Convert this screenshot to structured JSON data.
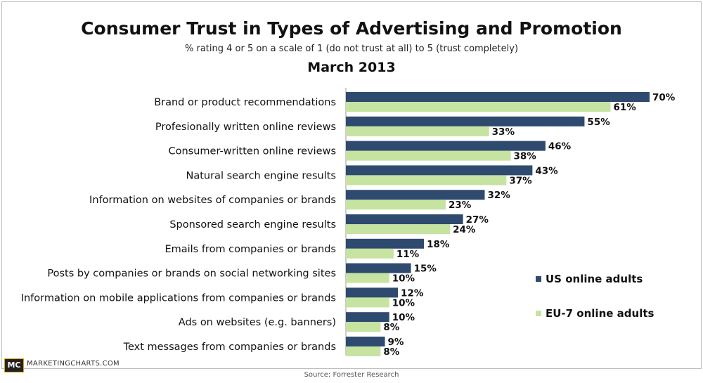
{
  "chart_data": {
    "type": "bar",
    "orientation": "horizontal",
    "title": "Consumer Trust in Types of Advertising and Promotion",
    "subtitle": "% rating 4 or 5 on a scale of 1 (do not trust at all) to 5 (trust completely)",
    "subtitle2": "March 2013",
    "categories": [
      "Brand or product recommendations",
      "Profesionally written online reviews",
      "Consumer-written online reviews",
      "Natural search engine results",
      "Information on websites of companies or brands",
      "Sponsored search engine results",
      "Emails from companies or brands",
      "Posts by companies or brands on social networking sites",
      "Information on mobile applications from companies or brands",
      "Ads on websites (e.g. banners)",
      "Text messages from companies or brands"
    ],
    "series": [
      {
        "name": "US online adults",
        "color": "#2e4a6e",
        "values": [
          70,
          55,
          46,
          43,
          32,
          27,
          18,
          15,
          12,
          10,
          9
        ]
      },
      {
        "name": "EU-7 online adults",
        "color": "#c6e3a1",
        "values": [
          61,
          33,
          38,
          37,
          23,
          24,
          11,
          10,
          10,
          8,
          8
        ]
      }
    ],
    "value_suffix": "%",
    "xlim": [
      0,
      70
    ],
    "legend_position": "right",
    "grid": false
  },
  "branding": {
    "logo": "MC",
    "site": "MARKETINGCHARTS.COM"
  },
  "source": "Source: Forrester Research"
}
